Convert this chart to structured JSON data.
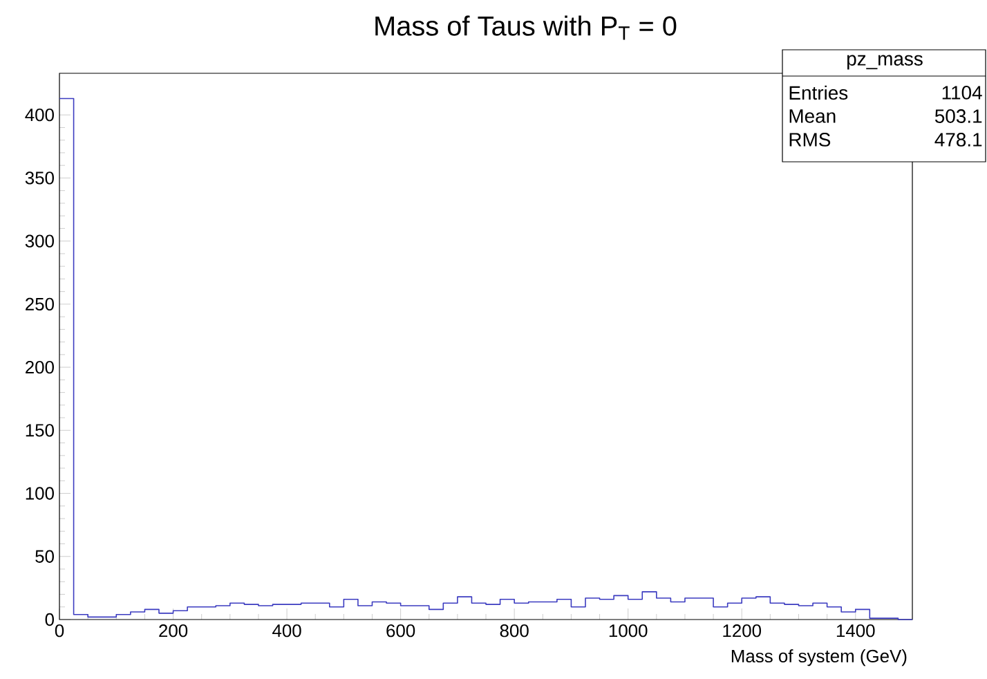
{
  "chart_data": {
    "type": "histogram",
    "title": "Mass of Taus with P$_{T}$ = 0",
    "xlabel": "Mass of system (GeV)",
    "bins": [
      0,
      25,
      50,
      75,
      100,
      125,
      150,
      175,
      200,
      225,
      250,
      275,
      300,
      325,
      350,
      375,
      400,
      425,
      450,
      475,
      500,
      525,
      550,
      575,
      600,
      625,
      650,
      675,
      700,
      725,
      750,
      775,
      800,
      825,
      850,
      875,
      900,
      925,
      950,
      975,
      1000,
      1025,
      1050,
      1075,
      1100,
      1125,
      1150,
      1175,
      1200,
      1225,
      1250,
      1275,
      1300,
      1325,
      1350,
      1375,
      1400,
      1425,
      1450,
      1475,
      1500
    ],
    "values": [
      413,
      4,
      2,
      2,
      4,
      6,
      8,
      5,
      7,
      10,
      10,
      11,
      13,
      12,
      11,
      12,
      12,
      13,
      13,
      10,
      16,
      11,
      14,
      13,
      11,
      11,
      8,
      13,
      18,
      13,
      12,
      16,
      13,
      14,
      14,
      16,
      10,
      17,
      16,
      19,
      16,
      22,
      17,
      14,
      17,
      17,
      10,
      13,
      17,
      18,
      13,
      12,
      11,
      13,
      10,
      6,
      8,
      1,
      1,
      0
    ],
    "color": "#3b3bc0",
    "xlim": [
      0,
      1500
    ],
    "xticks": [
      0,
      200,
      400,
      600,
      800,
      1000,
      1200,
      1400
    ],
    "ylim": [
      0,
      433
    ],
    "yticks": [
      0,
      50,
      100,
      150,
      200,
      250,
      300,
      350,
      400
    ],
    "annotations": [
      "pz_mass",
      "Entries",
      "1104",
      "Mean",
      "503.1",
      "RMS",
      "478.1"
    ]
  }
}
